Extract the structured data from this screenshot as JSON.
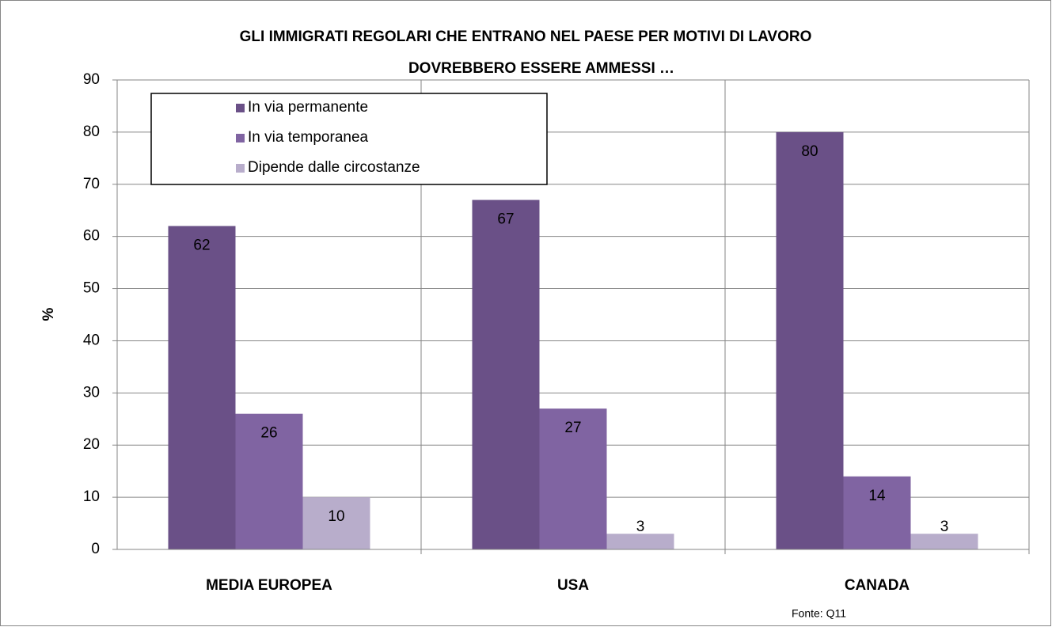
{
  "chart_data": {
    "type": "bar",
    "title": [
      "GLI IMMIGRATI REGOLARI CHE ENTRANO NEL PAESE PER MOTIVI DI LAVORO",
      "DOVREBBERO ESSERE AMMESSI …"
    ],
    "y_label": "%",
    "categories": [
      "MEDIA EUROPEA",
      "USA",
      "CANADA"
    ],
    "series": [
      {
        "name": "In via permanente",
        "color": "#6a5087",
        "values": [
          62,
          67,
          80
        ]
      },
      {
        "name": "In via temporanea",
        "color": "#8064a2",
        "values": [
          26,
          27,
          14
        ]
      },
      {
        "name": "Dipende dalle circostanze",
        "color": "#b8adcb",
        "values": [
          10,
          3,
          3
        ]
      }
    ],
    "ylim": [
      0,
      90
    ],
    "yticks": [
      0,
      10,
      20,
      30,
      40,
      50,
      60,
      70,
      80,
      90
    ],
    "grid": true,
    "legend": "top-left",
    "note": "Fonte: Q11"
  }
}
